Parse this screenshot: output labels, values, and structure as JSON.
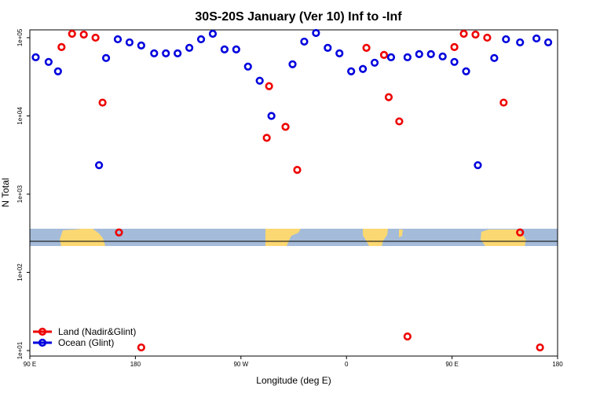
{
  "chart_data": {
    "type": "scatter",
    "title": "30S-20S January (Ver 10)   Inf to -Inf",
    "xlabel": "Longitude (deg E)",
    "ylabel": "N Total",
    "xlim": [
      90,
      540
    ],
    "ylim_log10": [
      0.93,
      5.1
    ],
    "y_scale": "log",
    "x_tick_labels": [
      "90 E",
      "180",
      "90 W",
      "0",
      "90 E",
      "180"
    ],
    "x_tick_values": [
      90,
      180,
      270,
      360,
      450,
      540
    ],
    "y_tick_labels": [
      "1e+01",
      "1e+02",
      "1e+03",
      "1e+04",
      "1e+05"
    ],
    "y_tick_values": [
      1,
      2,
      3,
      4,
      5
    ],
    "legend_position": "bottom-left",
    "series": [
      {
        "name": "Land (Nadir&Glint)",
        "color": "#ee0000",
        "x": [
          117,
          126,
          136,
          146,
          152,
          166,
          185,
          292,
          294,
          308,
          318,
          377,
          392,
          396,
          405,
          412,
          452,
          460,
          470,
          480,
          494,
          508,
          525
        ],
        "log10_y": [
          4.88,
          5.05,
          5.04,
          5.0,
          4.17,
          2.51,
          1.04,
          3.72,
          4.38,
          3.86,
          3.31,
          4.87,
          4.78,
          4.24,
          3.93,
          1.18,
          4.88,
          5.05,
          5.04,
          5.0,
          4.17,
          2.51,
          1.04
        ]
      },
      {
        "name": "Ocean (Glint)",
        "color": "#0000dd",
        "x": [
          95,
          106,
          114,
          149,
          155,
          165,
          175,
          185,
          196,
          206,
          216,
          226,
          236,
          246,
          256,
          266,
          276,
          286,
          296,
          314,
          324,
          334,
          344,
          354,
          364,
          374,
          384,
          398,
          412,
          422,
          432,
          442,
          452,
          462,
          472,
          486,
          496,
          508,
          522,
          532
        ],
        "log10_y": [
          4.75,
          4.69,
          4.57,
          3.37,
          4.74,
          4.98,
          4.94,
          4.9,
          4.8,
          4.8,
          4.8,
          4.87,
          4.98,
          5.05,
          4.85,
          4.85,
          4.63,
          4.45,
          4.0,
          4.66,
          4.95,
          5.06,
          4.87,
          4.8,
          4.57,
          4.6,
          4.68,
          4.75,
          4.75,
          4.79,
          4.79,
          4.76,
          4.69,
          4.57,
          3.37,
          4.74,
          4.98,
          4.94,
          4.99,
          4.94
        ]
      }
    ]
  }
}
